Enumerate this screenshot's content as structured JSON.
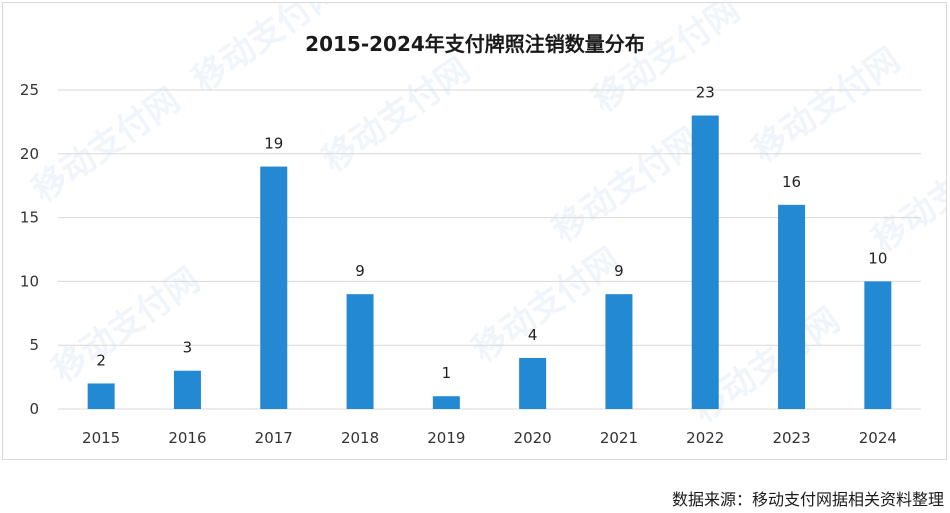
{
  "chart_data": {
    "type": "bar",
    "title": "2015-2024年支付牌照注销数量分布",
    "categories": [
      "2015",
      "2016",
      "2017",
      "2018",
      "2019",
      "2020",
      "2021",
      "2022",
      "2023",
      "2024"
    ],
    "values": [
      2,
      3,
      19,
      9,
      1,
      4,
      9,
      23,
      16,
      10
    ],
    "ylim": [
      0,
      25
    ],
    "yticks": [
      0,
      5,
      10,
      15,
      20,
      25
    ],
    "xlabel": "",
    "ylabel": "",
    "grid": true,
    "bar_color": "#2389d2",
    "data_labels": true
  },
  "source_note": "数据来源：移动支付网据相关资料整理",
  "watermark": "移动支付网"
}
